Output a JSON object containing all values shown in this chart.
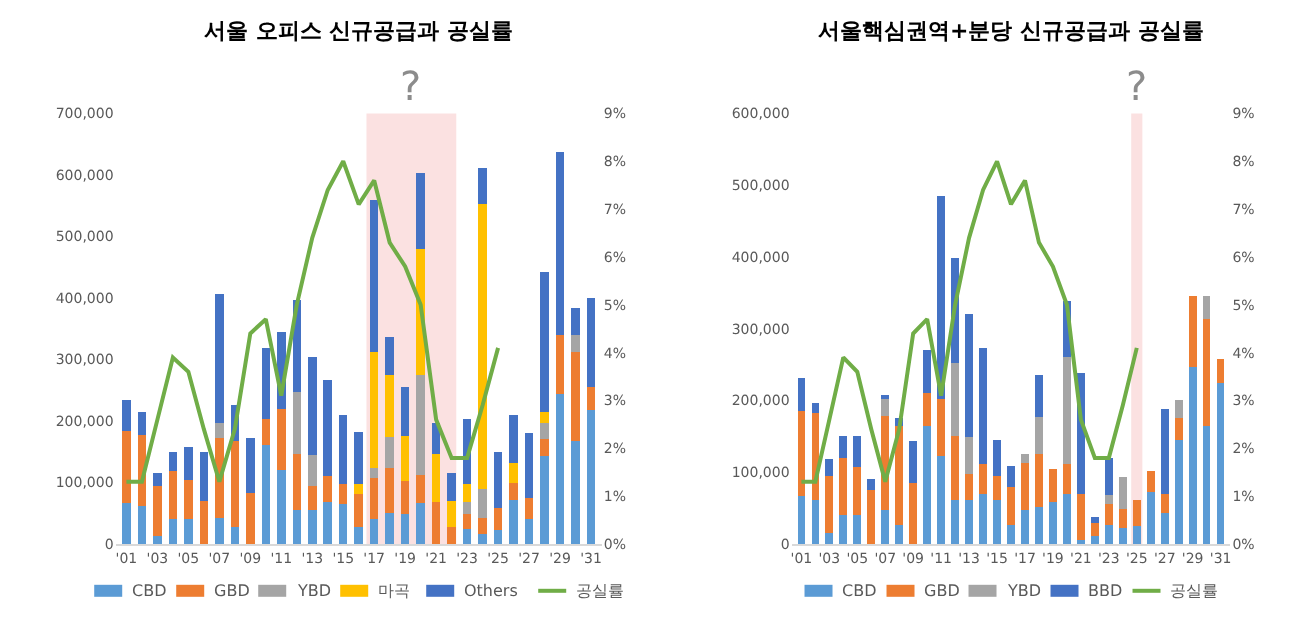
{
  "chart_data": [
    {
      "type": "bar",
      "stacked": true,
      "title": "서울 오피스 신규공급과 공실률",
      "legend": "bottom",
      "grid": false,
      "x": [
        2001,
        2002,
        2003,
        2004,
        2005,
        2006,
        2007,
        2008,
        2009,
        2010,
        2011,
        2012,
        2013,
        2014,
        2015,
        2016,
        2017,
        2018,
        2019,
        2020,
        2021,
        2022,
        2023,
        2024,
        2025,
        2026,
        2027,
        2028,
        2029,
        2030,
        2031
      ],
      "xlim": [
        2000.3,
        2031.7
      ],
      "xticks": [
        {
          "value": 2001,
          "label": "'01"
        },
        {
          "value": 2003,
          "label": "'03"
        },
        {
          "value": 2005,
          "label": "'05"
        },
        {
          "value": 2007,
          "label": "'07"
        },
        {
          "value": 2009,
          "label": "'09"
        },
        {
          "value": 2011,
          "label": "'11"
        },
        {
          "value": 2013,
          "label": "'13"
        },
        {
          "value": 2015,
          "label": "'15"
        },
        {
          "value": 2017,
          "label": "'17"
        },
        {
          "value": 2019,
          "label": "'19"
        },
        {
          "value": 2021,
          "label": "'21"
        },
        {
          "value": 2023,
          "label": "'23"
        },
        {
          "value": 2025,
          "label": "'25"
        },
        {
          "value": 2027,
          "label": "'27"
        },
        {
          "value": 2029,
          "label": "'29"
        },
        {
          "value": 2031,
          "label": "'31"
        }
      ],
      "ylim": [
        0,
        700000
      ],
      "yticks": [
        0,
        {
          "value": 100000,
          "label": "100,000"
        },
        {
          "value": 200000,
          "label": "200,000"
        },
        {
          "value": 300000,
          "label": "300,000"
        },
        {
          "value": 400000,
          "label": "400,000"
        },
        {
          "value": 500000,
          "label": "500,000"
        },
        {
          "value": 600000,
          "label": "600,000"
        },
        {
          "value": 700000,
          "label": "700,000"
        }
      ],
      "y2lim": [
        0,
        9
      ],
      "y2ticks": [
        {
          "value": 0,
          "label": "0%"
        },
        {
          "value": 1,
          "label": "1%"
        },
        {
          "value": 2,
          "label": "2%"
        },
        {
          "value": 3,
          "label": "3%"
        },
        {
          "value": 4,
          "label": "4%"
        },
        {
          "value": 5,
          "label": "5%"
        },
        {
          "value": 6,
          "label": "6%"
        },
        {
          "value": 7,
          "label": "7%"
        },
        {
          "value": 8,
          "label": "8%"
        },
        {
          "value": 9,
          "label": "9%"
        }
      ],
      "bands": [
        {
          "axis": "x",
          "from": 2016.5,
          "to": 2022.3,
          "label": "?",
          "color": "#fbe1e1"
        }
      ],
      "series": [
        {
          "name": "CBD",
          "color": "#5b9bd5",
          "values": [
            67000,
            62000,
            13000,
            40000,
            40000,
            0,
            43000,
            27000,
            0,
            161000,
            120000,
            56000,
            56000,
            68000,
            65000,
            27000,
            40000,
            51000,
            48000,
            67000,
            0,
            0,
            25000,
            16000,
            22000,
            72000,
            40000,
            143000,
            244000,
            167000,
            218000
          ]
        },
        {
          "name": "GBD",
          "color": "#ed7d31",
          "values": [
            116000,
            115000,
            81000,
            78000,
            64000,
            70000,
            129000,
            140000,
            83000,
            43000,
            100000,
            91000,
            38000,
            42000,
            32000,
            54000,
            68000,
            73000,
            54000,
            46000,
            68000,
            27000,
            23000,
            27000,
            37000,
            28000,
            35000,
            27000,
            95000,
            145000,
            37000
          ]
        },
        {
          "name": "YBD",
          "color": "#a5a5a5",
          "values": [
            0,
            0,
            0,
            0,
            0,
            0,
            25000,
            0,
            0,
            0,
            0,
            100000,
            51000,
            0,
            0,
            0,
            16000,
            50000,
            0,
            161000,
            0,
            0,
            20000,
            46000,
            0,
            0,
            0,
            26000,
            0,
            27000,
            0
          ]
        },
        {
          "name": "마곡",
          "color": "#ffc000",
          "values": [
            0,
            0,
            0,
            0,
            0,
            0,
            0,
            0,
            0,
            0,
            0,
            0,
            0,
            0,
            0,
            16000,
            188000,
            100000,
            73000,
            205000,
            79000,
            43000,
            29000,
            463000,
            0,
            32000,
            0,
            19000,
            0,
            0,
            0
          ]
        },
        {
          "name": "Others",
          "color": "#4472c4",
          "values": [
            51000,
            38000,
            21000,
            32000,
            54000,
            80000,
            210000,
            59000,
            89000,
            115000,
            124000,
            149000,
            159000,
            156000,
            113000,
            85000,
            248000,
            62000,
            80000,
            124000,
            50000,
            45000,
            107000,
            59000,
            91000,
            78000,
            106000,
            227000,
            299000,
            44000,
            145000
          ]
        },
        {
          "name": "공실률",
          "type": "line",
          "axis": "y2",
          "color": "#70ad47",
          "values": [
            1.3,
            1.3,
            2.6,
            3.9,
            3.6,
            2.4,
            1.3,
            2.4,
            4.4,
            4.7,
            3.1,
            5.0,
            6.4,
            7.4,
            8.0,
            7.1,
            7.6,
            6.3,
            5.8,
            5.0,
            2.6,
            1.8,
            1.8,
            2.9,
            4.1,
            null,
            null,
            null,
            null,
            null,
            null
          ]
        }
      ]
    },
    {
      "type": "bar",
      "stacked": true,
      "title": "서울핵심권역+분당 신규공급과 공실률",
      "legend": "bottom",
      "grid": false,
      "x": [
        2001,
        2002,
        2003,
        2004,
        2005,
        2006,
        2007,
        2008,
        2009,
        2010,
        2011,
        2012,
        2013,
        2014,
        2015,
        2016,
        2017,
        2018,
        2019,
        2020,
        2021,
        2022,
        2023,
        2024,
        2025,
        2026,
        2027,
        2028,
        2029,
        2030,
        2031
      ],
      "xlim": [
        2000.3,
        2031.7
      ],
      "xticks": [
        {
          "value": 2001,
          "label": "'01"
        },
        {
          "value": 2003,
          "label": "'03"
        },
        {
          "value": 2005,
          "label": "'05"
        },
        {
          "value": 2007,
          "label": "'07"
        },
        {
          "value": 2009,
          "label": "'09"
        },
        {
          "value": 2011,
          "label": "'11"
        },
        {
          "value": 2013,
          "label": "'13"
        },
        {
          "value": 2015,
          "label": "'15"
        },
        {
          "value": 2017,
          "label": "'17"
        },
        {
          "value": 2019,
          "label": "'19"
        },
        {
          "value": 2021,
          "label": "'21"
        },
        {
          "value": 2023,
          "label": "'23"
        },
        {
          "value": 2025,
          "label": "'25"
        },
        {
          "value": 2027,
          "label": "'27"
        },
        {
          "value": 2029,
          "label": "'29"
        },
        {
          "value": 2031,
          "label": "'31"
        }
      ],
      "ylim": [
        0,
        600000
      ],
      "yticks": [
        0,
        {
          "value": 100000,
          "label": "100,000"
        },
        {
          "value": 200000,
          "label": "200,000"
        },
        {
          "value": 300000,
          "label": "300,000"
        },
        {
          "value": 400000,
          "label": "400,000"
        },
        {
          "value": 500000,
          "label": "500,000"
        },
        {
          "value": 600000,
          "label": "600,000"
        }
      ],
      "y2lim": [
        0,
        9
      ],
      "y2ticks": [
        {
          "value": 0,
          "label": "0%"
        },
        {
          "value": 1,
          "label": "1%"
        },
        {
          "value": 2,
          "label": "2%"
        },
        {
          "value": 3,
          "label": "3%"
        },
        {
          "value": 4,
          "label": "4%"
        },
        {
          "value": 5,
          "label": "5%"
        },
        {
          "value": 6,
          "label": "6%"
        },
        {
          "value": 7,
          "label": "7%"
        },
        {
          "value": 8,
          "label": "8%"
        },
        {
          "value": 9,
          "label": "9%"
        }
      ],
      "bands": [
        {
          "axis": "x",
          "from": 2024.6,
          "to": 2025.4,
          "label": "?",
          "color": "#fbe1e1"
        }
      ],
      "series": [
        {
          "name": "CBD",
          "color": "#5b9bd5",
          "values": [
            67000,
            61000,
            15000,
            40000,
            40000,
            0,
            47000,
            27000,
            0,
            164000,
            123000,
            61000,
            61000,
            70000,
            61000,
            26000,
            47000,
            52000,
            58000,
            70000,
            6000,
            11000,
            26000,
            22000,
            25000,
            73000,
            43000,
            145000,
            247000,
            165000,
            225000
          ]
        },
        {
          "name": "GBD",
          "color": "#ed7d31",
          "values": [
            118000,
            121000,
            80000,
            80000,
            68000,
            75000,
            132000,
            138000,
            85000,
            47000,
            79000,
            89000,
            36000,
            41000,
            34000,
            53000,
            66000,
            73000,
            46000,
            41000,
            64000,
            18000,
            30000,
            27000,
            36000,
            29000,
            27000,
            30000,
            98000,
            148000,
            33000
          ]
        },
        {
          "name": "YBD",
          "color": "#a5a5a5",
          "values": [
            0,
            0,
            0,
            0,
            0,
            0,
            23000,
            0,
            0,
            0,
            0,
            102000,
            52000,
            0,
            0,
            0,
            12000,
            52000,
            0,
            150000,
            0,
            0,
            12000,
            44000,
            0,
            0,
            0,
            25000,
            0,
            32000,
            0
          ]
        },
        {
          "name": "BBD",
          "color": "#4472c4",
          "values": [
            46000,
            15000,
            23000,
            30000,
            42000,
            16000,
            4000,
            11000,
            58000,
            59000,
            283000,
            147000,
            171000,
            162000,
            50000,
            30000,
            0,
            59000,
            0,
            77000,
            168000,
            9000,
            52000,
            0,
            0,
            0,
            118000,
            0,
            0,
            0,
            0
          ]
        },
        {
          "name": "공실률",
          "type": "line",
          "axis": "y2",
          "color": "#70ad47",
          "values": [
            1.3,
            1.3,
            2.6,
            3.9,
            3.6,
            2.4,
            1.3,
            2.4,
            4.4,
            4.7,
            3.1,
            5.0,
            6.4,
            7.4,
            8.0,
            7.1,
            7.6,
            6.3,
            5.8,
            5.0,
            2.6,
            1.8,
            1.8,
            2.9,
            4.1,
            null,
            null,
            null,
            null,
            null,
            null
          ]
        }
      ]
    }
  ]
}
